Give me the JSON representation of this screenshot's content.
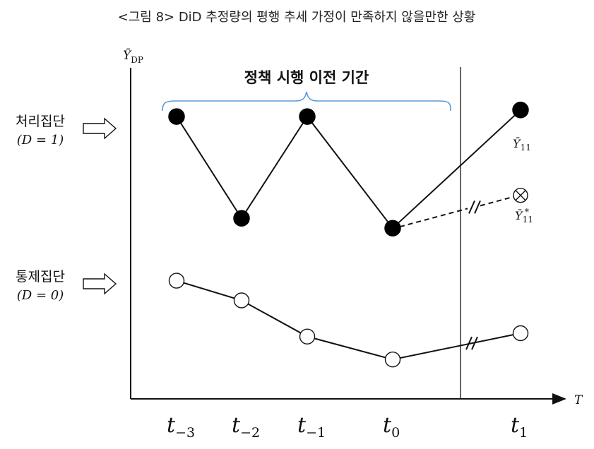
{
  "title": "<그림 8> DiD 추정량의 평행 추세 가정이 만족하지 않을만한 상황",
  "axes": {
    "y_label": "Ȳ",
    "y_label_sub": "DP",
    "x_label": "T"
  },
  "bracket": {
    "label": "정책 시행 이전 기간",
    "color": "#5b9bd5"
  },
  "groups": {
    "treatment": {
      "name": "처리집단",
      "dvalue": "(D = 1)"
    },
    "control": {
      "name": "통제집단",
      "dvalue": "(D = 0)"
    }
  },
  "ticks": [
    {
      "base": "t",
      "sub": "−3"
    },
    {
      "base": "t",
      "sub": "−2"
    },
    {
      "base": "t",
      "sub": "−1"
    },
    {
      "base": "t",
      "sub": "0"
    },
    {
      "base": "t",
      "sub": "1"
    }
  ],
  "point_labels": {
    "observed": {
      "base": "Ȳ",
      "sub": "11"
    },
    "counterfactual": {
      "base": "Ȳ",
      "sub": "11",
      "sup": "*"
    }
  },
  "chart_data": {
    "type": "line",
    "x": [
      "t−3",
      "t−2",
      "t−1",
      "t0",
      "t1"
    ],
    "series": [
      {
        "name": "처리집단",
        "marker": "filled",
        "values": [
          0.86,
          0.55,
          0.86,
          0.52,
          0.88
        ]
      },
      {
        "name": "통제집단",
        "marker": "hollow",
        "values": [
          0.36,
          0.3,
          0.19,
          0.12,
          0.2
        ]
      }
    ],
    "counterfactual": {
      "from_x": "t0",
      "to_x": "t1",
      "value": 0.62,
      "style": "dashed",
      "marker": "circle-x"
    },
    "policy_line_between": [
      "t0",
      "t1"
    ],
    "ylim": [
      0,
      1
    ]
  }
}
